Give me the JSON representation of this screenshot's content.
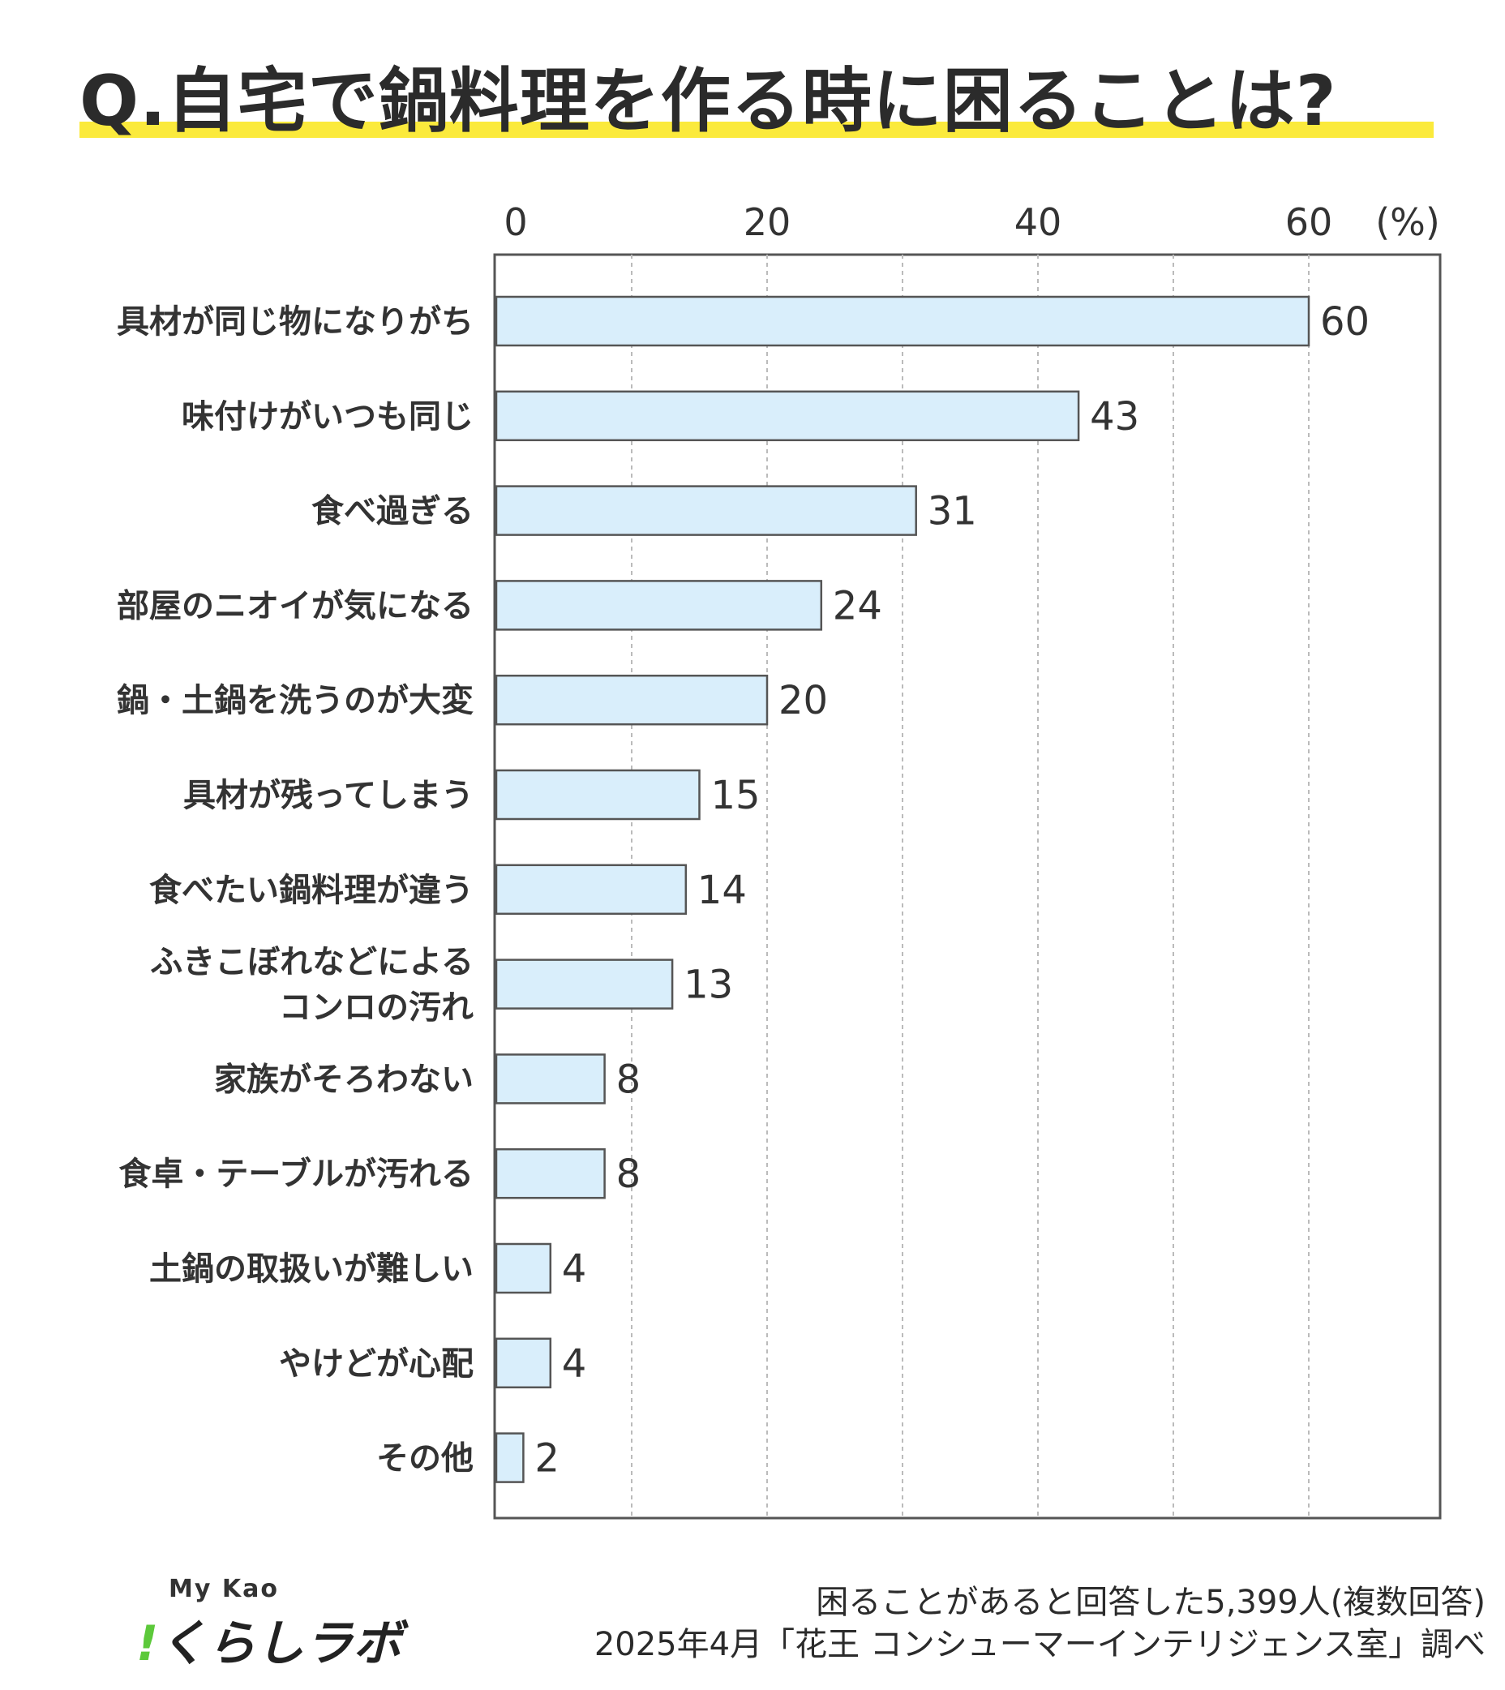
{
  "title": "Q.自宅で鍋料理を作る時に困ることは?",
  "chart_data": {
    "type": "bar",
    "orientation": "horizontal",
    "title": "Q.自宅で鍋料理を作る時に困ることは?",
    "unit_label": "(%)",
    "xlim": [
      0,
      70
    ],
    "ticks": [
      0,
      20,
      40,
      60
    ],
    "grid": true,
    "categories": [
      [
        "具材が同じ物になりがち"
      ],
      [
        "味付けがいつも同じ"
      ],
      [
        "食べ過ぎる"
      ],
      [
        "部屋のニオイが気になる"
      ],
      [
        "鍋・土鍋を洗うのが大変"
      ],
      [
        "具材が残ってしまう"
      ],
      [
        "食べたい鍋料理が違う"
      ],
      [
        "ふきこぼれなどによる",
        "コンロの汚れ"
      ],
      [
        "家族がそろわない"
      ],
      [
        "食卓・テーブルが汚れる"
      ],
      [
        "土鍋の取扱いが難しい"
      ],
      [
        "やけどが心配"
      ],
      [
        "その他"
      ]
    ],
    "values": [
      60,
      43,
      31,
      24,
      20,
      15,
      14,
      13,
      8,
      8,
      4,
      4,
      2
    ],
    "colors": {
      "bar_fill": "#d9eefb",
      "bar_stroke": "#555555",
      "grid": "#bbbbbb",
      "frame": "#555555"
    }
  },
  "note": {
    "line1": "困ることがあると回答した5,399人(複数回答)",
    "line2": "2025年4月「花王 コンシューマーインテリジェンス室」調べ"
  },
  "logo": {
    "top": "My Kao",
    "bang": "!",
    "main": "くらしラボ"
  },
  "colors": {
    "title_highlight": "#fbea3c",
    "logo_accent": "#5cc93a"
  }
}
